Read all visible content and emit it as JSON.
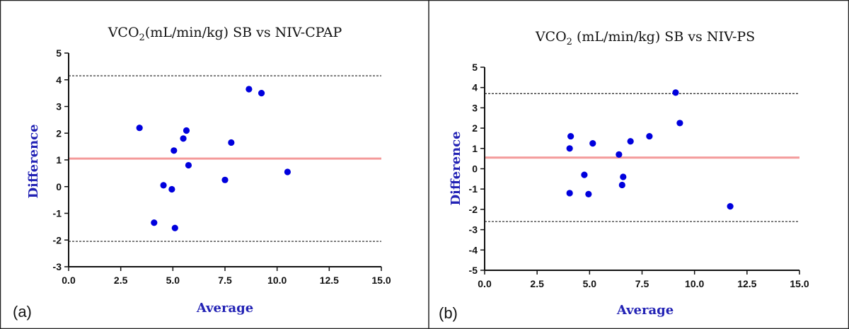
{
  "chart_data": [
    {
      "type": "scatter",
      "panel_label": "(a)",
      "title_main": "VCO",
      "title_sub": "2",
      "title_rest": "(mL/min/kg) SB vs NIV-CPAP",
      "xlabel": "Average",
      "ylabel": "Difference",
      "xlim": [
        0,
        15
      ],
      "ylim": [
        -3,
        5
      ],
      "xticks": [
        "0.0",
        "2.5",
        "5.0",
        "7.5",
        "10.0",
        "12.5",
        "15.0"
      ],
      "yticks": [
        "-3",
        "-2",
        "-1",
        "0",
        "1",
        "2",
        "3",
        "4",
        "5"
      ],
      "mean_line": 1.05,
      "upper_limit": 4.15,
      "lower_limit": -2.05,
      "x": [
        3.4,
        4.1,
        4.55,
        4.95,
        5.05,
        5.1,
        5.5,
        5.65,
        5.75,
        7.5,
        7.8,
        8.65,
        9.25,
        10.5
      ],
      "y": [
        2.2,
        -1.35,
        0.05,
        -0.1,
        1.35,
        -1.55,
        1.8,
        2.1,
        0.8,
        0.25,
        1.65,
        3.65,
        3.5,
        0.55
      ],
      "colors": {
        "points": "#0000dd",
        "mean": "#f49a9a",
        "limits": "#333333"
      }
    },
    {
      "type": "scatter",
      "panel_label": "(b)",
      "title_main": "VCO",
      "title_sub": "2",
      "title_rest": " (mL/min/kg) SB vs NIV-PS",
      "xlabel": "Average",
      "ylabel": "Difference",
      "xlim": [
        0,
        15
      ],
      "ylim": [
        -5,
        5
      ],
      "xticks": [
        "0.0",
        "2.5",
        "5.0",
        "7.5",
        "10.0",
        "12.5",
        "15.0"
      ],
      "yticks": [
        "-5",
        "-4",
        "-3",
        "-2",
        "-1",
        "0",
        "1",
        "2",
        "3",
        "4",
        "5"
      ],
      "mean_line": 0.55,
      "upper_limit": 3.7,
      "lower_limit": -2.6,
      "x": [
        4.05,
        4.1,
        4.05,
        4.75,
        4.95,
        5.15,
        6.4,
        6.6,
        6.55,
        6.95,
        7.85,
        9.1,
        9.3,
        11.7
      ],
      "y": [
        1.0,
        1.6,
        -1.2,
        -0.3,
        -1.25,
        1.25,
        0.7,
        -0.4,
        -0.8,
        1.35,
        1.6,
        3.75,
        2.25,
        -1.85
      ],
      "colors": {
        "points": "#0000dd",
        "mean": "#f49a9a",
        "limits": "#333333"
      }
    }
  ]
}
